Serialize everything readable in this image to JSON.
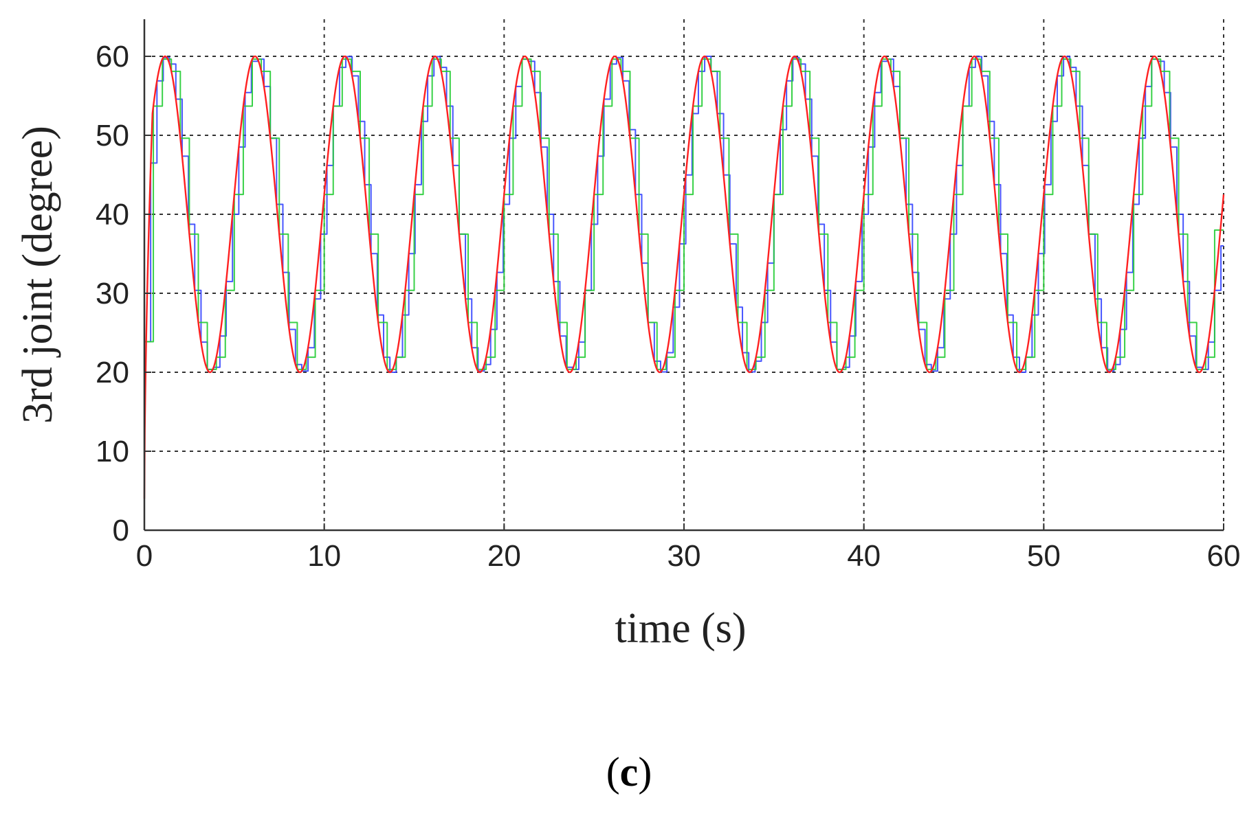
{
  "chart_data": {
    "type": "line",
    "xlabel": "time (s)",
    "ylabel": "3rd joint (degree)",
    "xlim": [
      0,
      60
    ],
    "ylim": [
      0,
      65
    ],
    "x_ticks": [
      "0",
      "10",
      "20",
      "30",
      "40",
      "50",
      "60"
    ],
    "y_ticks": [
      "0",
      "10",
      "20",
      "30",
      "40",
      "50",
      "60"
    ],
    "grid": true,
    "grid_style": "dotted",
    "legend": "none",
    "panel_label": {
      "open": "(",
      "letter": "c",
      "close": ")"
    },
    "series": [
      {
        "color": "#ff2020",
        "function": "sinusoid",
        "x_start": 0,
        "x_end": 60,
        "center": 40,
        "amplitude": 20,
        "period": 5.0,
        "first_peak_x": 1.15,
        "initial_value": 4,
        "values_sampled": {
          "x": [
            0,
            1.15,
            3.65,
            6.15,
            8.65,
            11.15,
            13.65,
            16.15,
            18.65,
            21.15,
            23.65,
            26.15,
            28.65,
            31.15,
            33.65,
            36.15,
            38.65,
            41.15,
            43.65,
            46.15,
            48.65,
            51.15,
            53.65,
            56.15,
            58.65,
            60
          ],
          "y": [
            4,
            60,
            20,
            60,
            20,
            60,
            20,
            60,
            20,
            60,
            20,
            60,
            20,
            60,
            20,
            60,
            20,
            60,
            20,
            60,
            20,
            60,
            20,
            60,
            20,
            44
          ]
        }
      },
      {
        "color": "#3344ff",
        "function": "sinusoid-stepped",
        "x_start": 0,
        "x_end": 60,
        "center": 40,
        "amplitude": 20,
        "period": 5.0,
        "first_peak_x": 1.15,
        "initial_value": 8,
        "step_seconds": 0.35,
        "end_value": 36
      },
      {
        "color": "#22cc33",
        "function": "sinusoid-stepped",
        "x_start": 0,
        "x_end": 60,
        "center": 40,
        "amplitude": 20,
        "period": 5.0,
        "first_peak_x": 1.15,
        "initial_value": 8,
        "step_seconds": 0.5,
        "end_value": 38
      }
    ],
    "colors": {
      "axis": "#333333",
      "grid": "#333333",
      "red": "#ff2020",
      "blue": "#3344ff",
      "green": "#22cc33"
    }
  }
}
